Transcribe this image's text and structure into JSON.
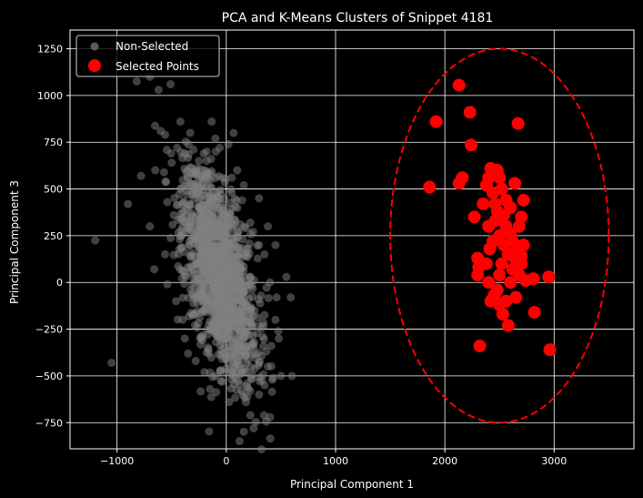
{
  "chart_data": {
    "type": "scatter",
    "title": "PCA and K-Means Clusters of Snippet 4181",
    "xlabel": "Principal Component 1",
    "ylabel": "Principal Component 3",
    "xlim": [
      -1430,
      3730
    ],
    "ylim": [
      -890,
      1350
    ],
    "xticks": [
      -1000,
      0,
      1000,
      2000,
      3000
    ],
    "yticks": [
      -750,
      -500,
      -250,
      0,
      250,
      500,
      750,
      1000,
      1250
    ],
    "grid": true,
    "legend_position": "top-left",
    "colors": {
      "background": "#000000",
      "non_selected": "#808080",
      "selected": "#ff0000",
      "ellipse": "#ff0000",
      "grid": "#ffffff"
    },
    "series": [
      {
        "name": "Non-Selected",
        "color": "#808080",
        "points": [
          [
            -1200,
            225
          ],
          [
            -1050,
            -430
          ],
          [
            -900,
            420
          ],
          [
            -820,
            1075
          ],
          [
            -700,
            1100
          ],
          [
            -620,
            1030
          ],
          [
            -510,
            1060
          ],
          [
            -600,
            810
          ],
          [
            -560,
            790
          ],
          [
            -500,
            640
          ],
          [
            -420,
            860
          ],
          [
            -450,
            720
          ],
          [
            -380,
            690
          ],
          [
            -300,
            710
          ],
          [
            -100,
            770
          ],
          [
            -60,
            720
          ],
          [
            20,
            740
          ],
          [
            -780,
            570
          ],
          [
            -650,
            600
          ],
          [
            -540,
            430
          ],
          [
            -700,
            300
          ],
          [
            -660,
            70
          ],
          [
            -560,
            150
          ],
          [
            -540,
            -10
          ],
          [
            -460,
            -100
          ],
          [
            -400,
            -200
          ],
          [
            -380,
            -300
          ],
          [
            -350,
            -380
          ],
          [
            -280,
            -420
          ],
          [
            -200,
            -480
          ],
          [
            -150,
            -570
          ],
          [
            -100,
            -500
          ],
          [
            -50,
            -470
          ],
          [
            50,
            -520
          ],
          [
            150,
            -600
          ],
          [
            180,
            -640
          ],
          [
            220,
            -710
          ],
          [
            250,
            -780
          ],
          [
            400,
            -720
          ],
          [
            300,
            -600
          ],
          [
            350,
            -550
          ],
          [
            380,
            -450
          ],
          [
            420,
            -520
          ],
          [
            500,
            -500
          ],
          [
            600,
            -500
          ],
          [
            480,
            -300
          ],
          [
            450,
            -200
          ],
          [
            460,
            -80
          ],
          [
            400,
            0
          ],
          [
            350,
            150
          ],
          [
            300,
            200
          ],
          [
            220,
            320
          ],
          [
            300,
            450
          ],
          [
            380,
            300
          ],
          [
            450,
            200
          ],
          [
            160,
            520
          ],
          [
            100,
            600
          ],
          [
            50,
            560
          ],
          [
            -200,
            600
          ],
          [
            -250,
            650
          ],
          [
            -180,
            700
          ],
          [
            -300,
            580
          ],
          [
            -350,
            520
          ],
          [
            -420,
            500
          ],
          [
            -480,
            360
          ],
          [
            -330,
            410
          ],
          [
            550,
            30
          ],
          [
            590,
            -80
          ],
          [
            340,
            -340
          ],
          [
            280,
            -270
          ],
          [
            120,
            -420
          ],
          [
            -240,
            -300
          ]
        ]
      },
      {
        "name": "Selected Points",
        "color": "#ff0000",
        "points": [
          [
            1860,
            510
          ],
          [
            1920,
            860
          ],
          [
            2130,
            1055
          ],
          [
            2230,
            910
          ],
          [
            2240,
            735
          ],
          [
            2670,
            850
          ],
          [
            2130,
            530
          ],
          [
            2160,
            560
          ],
          [
            2270,
            350
          ],
          [
            2300,
            130
          ],
          [
            2310,
            80
          ],
          [
            2300,
            40
          ],
          [
            2320,
            -340
          ],
          [
            2350,
            420
          ],
          [
            2380,
            520
          ],
          [
            2400,
            560
          ],
          [
            2420,
            610
          ],
          [
            2440,
            480
          ],
          [
            2450,
            590
          ],
          [
            2480,
            600
          ],
          [
            2500,
            560
          ],
          [
            2520,
            500
          ],
          [
            2400,
            300
          ],
          [
            2410,
            180
          ],
          [
            2380,
            100
          ],
          [
            2400,
            0
          ],
          [
            2420,
            -100
          ],
          [
            2450,
            -70
          ],
          [
            2480,
            -40
          ],
          [
            2500,
            -120
          ],
          [
            2530,
            -170
          ],
          [
            2560,
            -100
          ],
          [
            2580,
            -230
          ],
          [
            2600,
            0
          ],
          [
            2620,
            70
          ],
          [
            2640,
            130
          ],
          [
            2660,
            180
          ],
          [
            2680,
            300
          ],
          [
            2700,
            350
          ],
          [
            2720,
            440
          ],
          [
            2640,
            530
          ],
          [
            2600,
            400
          ],
          [
            2560,
            300
          ],
          [
            2540,
            200
          ],
          [
            2520,
            100
          ],
          [
            2500,
            250
          ],
          [
            2480,
            380
          ],
          [
            2460,
            330
          ],
          [
            2440,
            220
          ],
          [
            2620,
            220
          ],
          [
            2680,
            40
          ],
          [
            2700,
            100
          ],
          [
            2740,
            10
          ],
          [
            2650,
            -80
          ],
          [
            2720,
            200
          ],
          [
            2600,
            260
          ],
          [
            2560,
            440
          ],
          [
            2540,
            360
          ],
          [
            2460,
            420
          ],
          [
            2500,
            40
          ],
          [
            2810,
            20
          ],
          [
            2820,
            -160
          ],
          [
            2950,
            30
          ],
          [
            2960,
            -360
          ],
          [
            2700,
            140
          ],
          [
            2580,
            150
          ]
        ]
      }
    ],
    "ellipse": {
      "center": [
        2500,
        250
      ],
      "half_width": 1000,
      "half_height": 1000,
      "color": "#ff0000",
      "style": "dashed"
    }
  },
  "legend": {
    "non_selected": "Non-Selected",
    "selected": "Selected Points"
  }
}
